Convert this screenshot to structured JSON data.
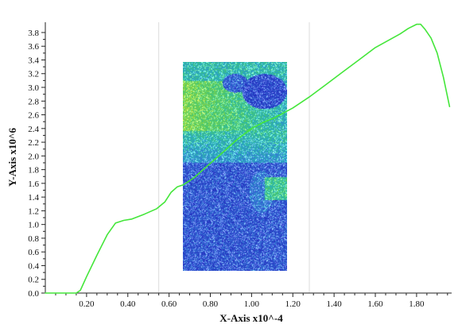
{
  "chart_data": {
    "type": "line",
    "xlabel": "X-Axis x10^-4",
    "ylabel": "Y-Axis x10^6",
    "xlim": [
      0.0,
      1.97
    ],
    "ylim": [
      0.0,
      3.95
    ],
    "x_ticks": [
      0.2,
      0.4,
      0.6,
      0.8,
      1.0,
      1.2,
      1.4,
      1.6,
      1.8
    ],
    "x_tick_labels": [
      "0.20",
      "0.40",
      "0.60",
      "0.80",
      "1.00",
      "1.20",
      "1.40",
      "1.60",
      "1.80"
    ],
    "y_ticks": [
      0.0,
      0.2,
      0.4,
      0.6,
      0.8,
      1.0,
      1.2,
      1.4,
      1.6,
      1.8,
      2.0,
      2.2,
      2.4,
      2.6,
      2.8,
      3.0,
      3.2,
      3.4,
      3.6,
      3.8
    ],
    "y_tick_labels": [
      "0.0",
      "0.2",
      "0.4",
      "0.6",
      "0.8",
      "1.0",
      "1.2",
      "1.4",
      "1.6",
      "1.8",
      "2.0",
      "2.2",
      "2.4",
      "2.6",
      "2.8",
      "3.0",
      "3.2",
      "3.4",
      "3.6",
      "3.8"
    ],
    "vertical_gridlines_x": [
      0.55,
      1.28
    ],
    "grid": false,
    "line_color": "#44e63a",
    "series": [
      {
        "x": [
          0.0,
          0.15,
          0.17,
          0.2,
          0.25,
          0.3,
          0.34,
          0.38,
          0.42,
          0.48,
          0.54,
          0.58,
          0.61,
          0.64,
          0.67,
          0.72,
          0.78,
          0.86,
          0.93,
          1.0,
          1.05,
          1.12,
          1.2,
          1.28,
          1.36,
          1.44,
          1.52,
          1.6,
          1.66,
          1.72,
          1.76,
          1.8,
          1.82,
          1.84,
          1.87,
          1.9,
          1.93,
          1.96
        ],
        "y": [
          0.0,
          0.0,
          0.04,
          0.24,
          0.55,
          0.85,
          1.02,
          1.06,
          1.08,
          1.15,
          1.23,
          1.33,
          1.47,
          1.55,
          1.58,
          1.68,
          1.84,
          2.05,
          2.24,
          2.4,
          2.48,
          2.57,
          2.7,
          2.86,
          3.04,
          3.22,
          3.4,
          3.58,
          3.68,
          3.78,
          3.86,
          3.92,
          3.92,
          3.85,
          3.72,
          3.5,
          3.15,
          2.72
        ]
      }
    ],
    "embedded_image": "noise heatmap panel (blue base, green/yellow upper-left region)"
  }
}
